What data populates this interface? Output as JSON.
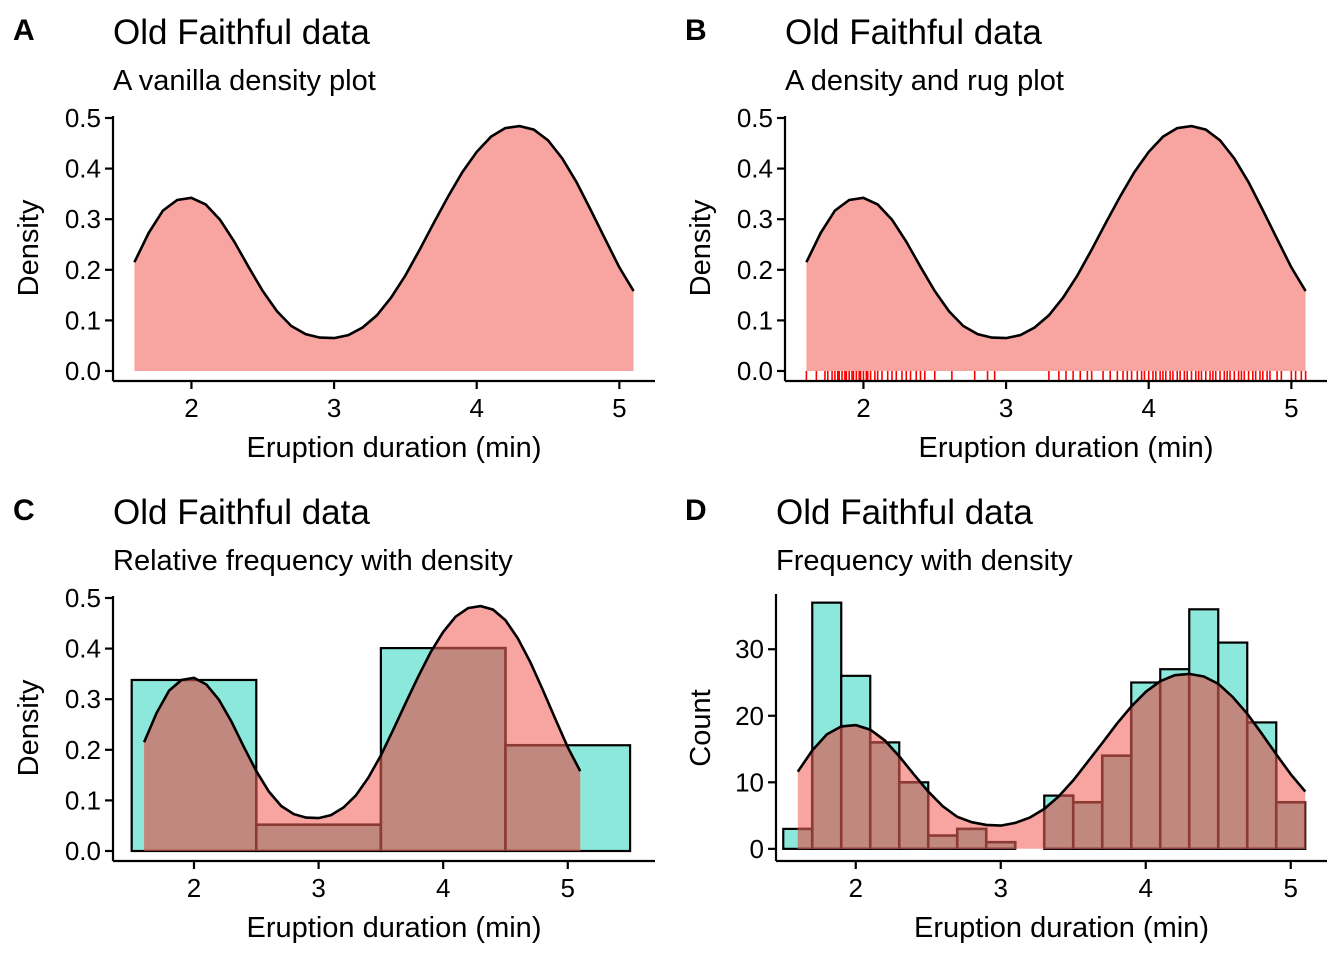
{
  "colors": {
    "density_fill": "#F8A5A2",
    "histogram_fill": "#8BE8DA",
    "histogram_stroke": "#000000",
    "overlay_fill": "#C1887F",
    "overlay_stroke": "#8B3A34",
    "rug": "#FF0000",
    "curve": "#000000"
  },
  "chart_data": [
    {
      "panel": "A",
      "type": "area",
      "title": "Old Faithful data",
      "subtitle": "A vanilla density plot",
      "xlabel": "Eruption duration (min)",
      "ylabel": "Density",
      "xlim": [
        1.45,
        5.25
      ],
      "ylim": [
        0,
        0.5
      ],
      "xticks": [
        2,
        3,
        4,
        5
      ],
      "yticks": [
        0.0,
        0.1,
        0.2,
        0.3,
        0.4,
        0.5
      ],
      "ytick_labels": [
        "0.0",
        "0.1",
        "0.2",
        "0.3",
        "0.4",
        "0.5"
      ],
      "grid": false,
      "series": [
        {
          "kind": "density",
          "x": [
            1.6,
            1.7,
            1.8,
            1.9,
            2.0,
            2.1,
            2.2,
            2.3,
            2.4,
            2.5,
            2.6,
            2.7,
            2.8,
            2.9,
            3.0,
            3.1,
            3.2,
            3.3,
            3.4,
            3.5,
            3.6,
            3.7,
            3.8,
            3.9,
            4.0,
            4.1,
            4.2,
            4.3,
            4.4,
            4.5,
            4.6,
            4.7,
            4.8,
            4.9,
            5.0,
            5.1
          ],
          "y": [
            0.215,
            0.273,
            0.317,
            0.338,
            0.342,
            0.329,
            0.299,
            0.256,
            0.206,
            0.158,
            0.118,
            0.089,
            0.073,
            0.066,
            0.065,
            0.071,
            0.086,
            0.11,
            0.145,
            0.189,
            0.24,
            0.293,
            0.345,
            0.393,
            0.433,
            0.463,
            0.48,
            0.484,
            0.477,
            0.456,
            0.42,
            0.373,
            0.318,
            0.261,
            0.205,
            0.158
          ]
        }
      ]
    },
    {
      "panel": "B",
      "type": "area",
      "title": "Old Faithful data",
      "subtitle": "A density and rug plot",
      "xlabel": "Eruption duration (min)",
      "ylabel": "Density",
      "xlim": [
        1.45,
        5.25
      ],
      "ylim": [
        0,
        0.5
      ],
      "xticks": [
        2,
        3,
        4,
        5
      ],
      "yticks": [
        0.0,
        0.1,
        0.2,
        0.3,
        0.4,
        0.5
      ],
      "ytick_labels": [
        "0.0",
        "0.1",
        "0.2",
        "0.3",
        "0.4",
        "0.5"
      ],
      "grid": false,
      "series": [
        {
          "kind": "density",
          "x": [
            1.6,
            1.7,
            1.8,
            1.9,
            2.0,
            2.1,
            2.2,
            2.3,
            2.4,
            2.5,
            2.6,
            2.7,
            2.8,
            2.9,
            3.0,
            3.1,
            3.2,
            3.3,
            3.4,
            3.5,
            3.6,
            3.7,
            3.8,
            3.9,
            4.0,
            4.1,
            4.2,
            4.3,
            4.4,
            4.5,
            4.6,
            4.7,
            4.8,
            4.9,
            5.0,
            5.1
          ],
          "y": [
            0.215,
            0.273,
            0.317,
            0.338,
            0.342,
            0.329,
            0.299,
            0.256,
            0.206,
            0.158,
            0.118,
            0.089,
            0.073,
            0.066,
            0.065,
            0.071,
            0.086,
            0.11,
            0.145,
            0.189,
            0.24,
            0.293,
            0.345,
            0.393,
            0.433,
            0.463,
            0.48,
            0.484,
            0.477,
            0.456,
            0.42,
            0.373,
            0.318,
            0.261,
            0.205,
            0.158
          ]
        },
        {
          "kind": "rug",
          "x": [
            1.6,
            1.67,
            1.73,
            1.75,
            1.78,
            1.8,
            1.82,
            1.83,
            1.85,
            1.87,
            1.88,
            1.9,
            1.92,
            1.93,
            1.95,
            1.97,
            1.98,
            2.0,
            2.02,
            2.03,
            2.05,
            2.08,
            2.1,
            2.13,
            2.17,
            2.2,
            2.23,
            2.27,
            2.3,
            2.33,
            2.37,
            2.4,
            2.43,
            2.5,
            2.62,
            2.78,
            2.87,
            2.92,
            3.3,
            3.37,
            3.42,
            3.47,
            3.52,
            3.57,
            3.6,
            3.68,
            3.73,
            3.78,
            3.82,
            3.85,
            3.88,
            3.92,
            3.95,
            3.97,
            4.0,
            4.03,
            4.05,
            4.08,
            4.1,
            4.12,
            4.15,
            4.17,
            4.2,
            4.22,
            4.25,
            4.27,
            4.3,
            4.33,
            4.35,
            4.37,
            4.4,
            4.43,
            4.45,
            4.47,
            4.5,
            4.53,
            4.55,
            4.57,
            4.6,
            4.63,
            4.65,
            4.67,
            4.7,
            4.73,
            4.75,
            4.78,
            4.8,
            4.83,
            4.85,
            4.9,
            4.93,
            5.0,
            5.03,
            5.07,
            5.1
          ]
        }
      ]
    },
    {
      "panel": "C",
      "type": "bar",
      "title": "Old Faithful data",
      "subtitle": "Relative frequency with density",
      "xlabel": "Eruption duration (min)",
      "ylabel": "Density",
      "xlim": [
        1.35,
        5.7
      ],
      "ylim": [
        0,
        0.5
      ],
      "xticks": [
        2,
        3,
        4,
        5
      ],
      "yticks": [
        0.0,
        0.1,
        0.2,
        0.3,
        0.4,
        0.5
      ],
      "ytick_labels": [
        "0.0",
        "0.1",
        "0.2",
        "0.3",
        "0.4",
        "0.5"
      ],
      "grid": false,
      "series": [
        {
          "kind": "histogram",
          "bins": [
            [
              1.5,
              2.5
            ],
            [
              2.5,
              3.5
            ],
            [
              3.5,
              4.5
            ],
            [
              4.5,
              5.5
            ]
          ],
          "values": [
            0.338,
            0.052,
            0.401,
            0.209
          ]
        },
        {
          "kind": "density",
          "x": [
            1.6,
            1.7,
            1.8,
            1.9,
            2.0,
            2.1,
            2.2,
            2.3,
            2.4,
            2.5,
            2.6,
            2.7,
            2.8,
            2.9,
            3.0,
            3.1,
            3.2,
            3.3,
            3.4,
            3.5,
            3.6,
            3.7,
            3.8,
            3.9,
            4.0,
            4.1,
            4.2,
            4.3,
            4.4,
            4.5,
            4.6,
            4.7,
            4.8,
            4.9,
            5.0,
            5.1
          ],
          "y": [
            0.215,
            0.273,
            0.317,
            0.338,
            0.342,
            0.329,
            0.299,
            0.256,
            0.206,
            0.158,
            0.118,
            0.089,
            0.073,
            0.066,
            0.065,
            0.071,
            0.086,
            0.11,
            0.145,
            0.189,
            0.24,
            0.293,
            0.345,
            0.393,
            0.433,
            0.463,
            0.48,
            0.484,
            0.477,
            0.456,
            0.42,
            0.373,
            0.318,
            0.261,
            0.205,
            0.158
          ]
        }
      ]
    },
    {
      "panel": "D",
      "type": "bar",
      "title": "Old Faithful data",
      "subtitle": "Frequency with density",
      "xlabel": "Eruption duration (min)",
      "ylabel": "Count",
      "xlim": [
        1.45,
        5.25
      ],
      "ylim": [
        -1,
        38
      ],
      "xticks": [
        2,
        3,
        4,
        5
      ],
      "yticks": [
        0,
        10,
        20,
        30
      ],
      "ytick_labels": [
        "0",
        "10",
        "20",
        "30"
      ],
      "grid": false,
      "series": [
        {
          "kind": "histogram",
          "bins": [
            [
              1.5,
              1.7
            ],
            [
              1.7,
              1.9
            ],
            [
              1.9,
              2.1
            ],
            [
              2.1,
              2.3
            ],
            [
              2.3,
              2.5
            ],
            [
              2.5,
              2.7
            ],
            [
              2.7,
              2.9
            ],
            [
              2.9,
              3.1
            ],
            [
              3.1,
              3.3
            ],
            [
              3.3,
              3.5
            ],
            [
              3.5,
              3.7
            ],
            [
              3.7,
              3.9
            ],
            [
              3.9,
              4.1
            ],
            [
              4.1,
              4.3
            ],
            [
              4.3,
              4.5
            ],
            [
              4.5,
              4.7
            ],
            [
              4.7,
              4.9
            ],
            [
              4.9,
              5.1
            ]
          ],
          "values": [
            3,
            37,
            26,
            16,
            10,
            2,
            3,
            1,
            0,
            8,
            7,
            14,
            25,
            27,
            36,
            31,
            19,
            7
          ]
        },
        {
          "kind": "density",
          "x": [
            1.6,
            1.7,
            1.8,
            1.9,
            2.0,
            2.1,
            2.2,
            2.3,
            2.4,
            2.5,
            2.6,
            2.7,
            2.8,
            2.9,
            3.0,
            3.1,
            3.2,
            3.3,
            3.4,
            3.5,
            3.6,
            3.7,
            3.8,
            3.9,
            4.0,
            4.1,
            4.2,
            4.3,
            4.4,
            4.5,
            4.6,
            4.7,
            4.8,
            4.9,
            5.0,
            5.1
          ],
          "y": [
            11.6,
            14.8,
            17.2,
            18.4,
            18.6,
            17.9,
            16.3,
            13.9,
            11.2,
            8.6,
            6.4,
            4.8,
            4.0,
            3.6,
            3.5,
            3.9,
            4.7,
            6.0,
            7.9,
            10.3,
            13.1,
            15.9,
            18.8,
            21.4,
            23.6,
            25.2,
            26.1,
            26.3,
            25.9,
            24.8,
            22.8,
            20.3,
            17.3,
            14.2,
            11.2,
            8.6
          ]
        }
      ]
    }
  ]
}
